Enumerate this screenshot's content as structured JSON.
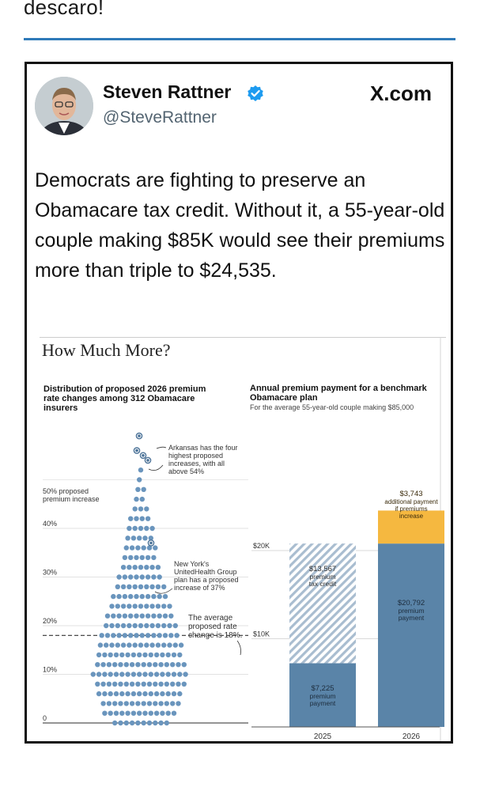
{
  "page": {
    "top_text": "descaro!",
    "accent_color": "#2f7ab9"
  },
  "tweet": {
    "author_name": "Steven Rattner",
    "handle": "@SteveRattner",
    "brand": "X.com",
    "text": "Democrats are fighting to preserve an Obamacare tax credit. Without it, a 55-year-old couple making $85K would see their premiums more than triple to $24,535.",
    "verified_color": "#1d9bf0"
  },
  "figure": {
    "title": "How Much More?",
    "left_chart": {
      "title": "Distribution of proposed 2026 premium rate changes among 312 Obamacare insurers",
      "annotations": {
        "a50_line1": "50% proposed",
        "a50_line2": "premium increase",
        "arkansas_l1": "Arkansas has the four",
        "arkansas_l2": "highest proposed",
        "arkansas_l3": "increases, with all",
        "arkansas_l4": "above 54%",
        "ny_l1": "New York's",
        "ny_l2": "UnitedHealth Group",
        "ny_l3": "plan has a proposed",
        "ny_l4": "increase of 37%",
        "avg_l1": "The average",
        "avg_l2": "proposed rate",
        "avg_l3": "change is 18%."
      }
    },
    "right_chart": {
      "title": "Annual premium payment for a benchmark Obamacare plan",
      "subtitle": "For the average 55-year-old couple making $85,000",
      "labels": {
        "b25_credit_l1": "$13,567",
        "b25_credit_l2": "premium",
        "b25_credit_l3": "tax credit",
        "b25_pay_l1": "$7,225",
        "b25_pay_l2": "premium",
        "b25_pay_l3": "payment",
        "b26_pay_l1": "$20,792",
        "b26_pay_l2": "premium",
        "b26_pay_l3": "payment",
        "b26_add_l1": "$3,743",
        "b26_add_l2": "additional payment",
        "b26_add_l3": "if premiums",
        "b26_add_l4": "increase"
      }
    }
  },
  "chart_data": [
    {
      "type": "scatter",
      "title": "Distribution of proposed 2026 premium rate changes among 312 Obamacare insurers",
      "ylabel": "",
      "ylim": [
        0,
        60
      ],
      "yticks": [
        "0",
        "10%",
        "20%",
        "30%",
        "40%"
      ],
      "average": 18,
      "highlights": [
        {
          "label": "Arkansas",
          "values": [
            54,
            55,
            56,
            59
          ]
        },
        {
          "label": "New York UnitedHealth Group",
          "value": 37
        }
      ],
      "counts_per_bin": {
        "0": 10,
        "2": 13,
        "4": 14,
        "6": 15,
        "8": 16,
        "10": 17,
        "12": 16,
        "14": 15,
        "16": 15,
        "18": 14,
        "20": 13,
        "22": 12,
        "24": 11,
        "26": 10,
        "28": 9,
        "30": 8,
        "32": 7,
        "34": 6,
        "36": 6,
        "38": 5,
        "40": 5,
        "42": 4,
        "44": 3,
        "46": 2,
        "48": 2,
        "50": 1,
        "52": 1
      }
    },
    {
      "type": "bar",
      "title": "Annual premium payment for a benchmark Obamacare plan",
      "subtitle": "For the average 55-year-old couple making $85,000",
      "categories": [
        "2025",
        "2026"
      ],
      "series": [
        {
          "name": "premium payment",
          "values": [
            7225,
            20792
          ],
          "color": "#5a84a8"
        },
        {
          "name": "premium tax credit",
          "values": [
            13567,
            0
          ],
          "color": "#a9bdd0"
        },
        {
          "name": "additional payment if premiums increase",
          "values": [
            0,
            3743
          ],
          "color": "#f5b840"
        }
      ],
      "yticks": [
        "$10K",
        "$20K"
      ],
      "ylim": [
        0,
        25000
      ]
    }
  ]
}
